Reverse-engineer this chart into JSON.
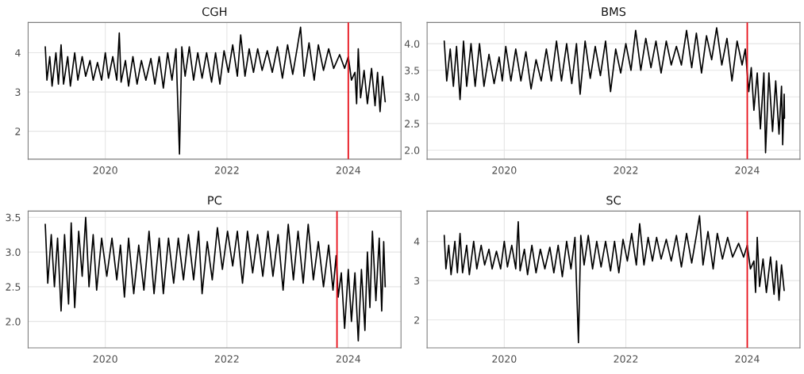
{
  "chart_data": [
    {
      "type": "line",
      "title": "CGH",
      "xlim": [
        "2018-09-24",
        "2024-11-13"
      ],
      "ylim": [
        1.29,
        4.77
      ],
      "yticks": [
        2,
        3,
        4
      ],
      "xticks": [
        {
          "value": "2020-01-01",
          "label": "2020"
        },
        {
          "value": "2022-01-01",
          "label": "2022"
        },
        {
          "value": "2024-01-01",
          "label": "2024"
        }
      ],
      "grid": true,
      "ref_lines": [
        {
          "axis": "x",
          "value": "2024-01-01",
          "color": "#e8101a"
        }
      ],
      "series": [
        {
          "color": "#000000",
          "x": [
            "2019-01-05",
            "2019-01-15",
            "2019-02-01",
            "2019-02-15",
            "2019-03-10",
            "2019-03-25",
            "2019-04-10",
            "2019-04-25",
            "2019-05-20",
            "2019-06-05",
            "2019-07-01",
            "2019-07-20",
            "2019-08-15",
            "2019-09-05",
            "2019-10-01",
            "2019-10-20",
            "2019-11-15",
            "2019-12-10",
            "2020-01-01",
            "2020-01-20",
            "2020-02-15",
            "2020-03-10",
            "2020-03-25",
            "2020-04-05",
            "2020-05-01",
            "2020-05-20",
            "2020-06-15",
            "2020-07-10",
            "2020-08-05",
            "2020-09-01",
            "2020-10-01",
            "2020-10-25",
            "2020-11-20",
            "2020-12-15",
            "2021-01-10",
            "2021-02-05",
            "2021-03-01",
            "2021-03-22",
            "2021-04-05",
            "2021-04-25",
            "2021-05-20",
            "2021-06-15",
            "2021-07-10",
            "2021-08-05",
            "2021-09-01",
            "2021-10-01",
            "2021-10-25",
            "2021-11-20",
            "2021-12-15",
            "2022-01-10",
            "2022-02-05",
            "2022-03-05",
            "2022-03-25",
            "2022-04-20",
            "2022-05-15",
            "2022-06-10",
            "2022-07-05",
            "2022-08-01",
            "2022-09-01",
            "2022-10-01",
            "2022-11-01",
            "2022-12-01",
            "2023-01-01",
            "2023-02-01",
            "2023-03-01",
            "2023-03-20",
            "2023-04-10",
            "2023-05-10",
            "2023-06-10",
            "2023-07-05",
            "2023-08-05",
            "2023-09-05",
            "2023-10-05",
            "2023-11-10",
            "2023-12-10",
            "2024-01-01",
            "2024-01-20",
            "2024-02-10",
            "2024-02-20",
            "2024-03-01",
            "2024-03-15",
            "2024-04-05",
            "2024-04-25",
            "2024-05-20",
            "2024-06-10",
            "2024-06-25",
            "2024-07-10",
            "2024-07-25",
            "2024-08-10"
          ],
          "values": [
            4.15,
            3.3,
            3.9,
            3.15,
            4.0,
            3.2,
            4.2,
            3.2,
            3.9,
            3.15,
            4.0,
            3.3,
            3.9,
            3.4,
            3.8,
            3.3,
            3.75,
            3.3,
            4.0,
            3.35,
            3.9,
            3.3,
            4.5,
            3.25,
            3.8,
            3.15,
            3.9,
            3.2,
            3.8,
            3.3,
            3.85,
            3.2,
            3.9,
            3.1,
            4.0,
            3.3,
            4.1,
            1.42,
            4.15,
            3.4,
            4.15,
            3.3,
            4.0,
            3.35,
            4.0,
            3.25,
            4.0,
            3.2,
            4.05,
            3.5,
            4.2,
            3.4,
            4.45,
            3.4,
            4.1,
            3.5,
            4.1,
            3.55,
            4.05,
            3.5,
            4.15,
            3.35,
            4.2,
            3.45,
            4.15,
            4.65,
            3.4,
            4.25,
            3.3,
            4.2,
            3.55,
            4.1,
            3.6,
            3.95,
            3.6,
            3.9,
            3.3,
            3.5,
            2.7,
            4.1,
            2.85,
            3.55,
            2.7,
            3.6,
            2.65,
            3.5,
            2.5,
            3.4,
            2.75
          ]
        }
      ]
    },
    {
      "type": "line",
      "title": "BMS",
      "xlim": [
        "2018-09-24",
        "2024-11-13"
      ],
      "ylim": [
        1.83,
        4.4
      ],
      "yticks": [
        {
          "value": 2.0,
          "label": "2.0"
        },
        2.5,
        {
          "value": 3.0,
          "label": "3.0"
        },
        3.5,
        {
          "value": 4.0,
          "label": "4.0"
        }
      ],
      "xticks": [
        {
          "value": "2020-01-01",
          "label": "2020"
        },
        {
          "value": "2022-01-01",
          "label": "2022"
        },
        {
          "value": "2024-01-01",
          "label": "2024"
        }
      ],
      "grid": true,
      "ref_lines": [
        {
          "axis": "x",
          "value": "2024-01-01",
          "color": "#e8101a"
        }
      ],
      "series": [
        {
          "color": "#000000",
          "x": [
            "2019-01-05",
            "2019-01-20",
            "2019-02-10",
            "2019-03-01",
            "2019-03-20",
            "2019-04-10",
            "2019-05-01",
            "2019-05-20",
            "2019-06-15",
            "2019-07-10",
            "2019-08-05",
            "2019-09-01",
            "2019-10-01",
            "2019-11-01",
            "2019-12-01",
            "2019-12-20",
            "2020-01-10",
            "2020-02-10",
            "2020-03-10",
            "2020-04-10",
            "2020-05-10",
            "2020-06-10",
            "2020-07-10",
            "2020-08-10",
            "2020-09-10",
            "2020-10-10",
            "2020-11-10",
            "2020-12-10",
            "2021-01-10",
            "2021-02-10",
            "2021-03-10",
            "2021-04-01",
            "2021-05-01",
            "2021-06-01",
            "2021-07-01",
            "2021-08-01",
            "2021-09-01",
            "2021-10-01",
            "2021-11-01",
            "2021-12-01",
            "2022-01-01",
            "2022-02-01",
            "2022-03-01",
            "2022-04-01",
            "2022-05-01",
            "2022-06-01",
            "2022-07-01",
            "2022-08-01",
            "2022-09-01",
            "2022-10-01",
            "2022-11-01",
            "2022-12-01",
            "2023-01-01",
            "2023-02-01",
            "2023-03-01",
            "2023-04-01",
            "2023-05-01",
            "2023-06-01",
            "2023-07-01",
            "2023-08-01",
            "2023-09-01",
            "2023-10-01",
            "2023-11-01",
            "2023-12-01",
            "2023-12-20",
            "2024-01-10",
            "2024-01-25",
            "2024-02-10",
            "2024-03-01",
            "2024-03-20",
            "2024-04-10",
            "2024-04-20",
            "2024-05-10",
            "2024-06-01",
            "2024-06-20",
            "2024-07-10",
            "2024-07-25",
            "2024-08-01",
            "2024-08-10",
            "2024-08-12"
          ],
          "values": [
            4.05,
            3.3,
            3.9,
            3.2,
            3.95,
            2.95,
            4.05,
            3.2,
            4.0,
            3.2,
            4.0,
            3.2,
            3.8,
            3.25,
            3.75,
            3.3,
            3.95,
            3.3,
            3.9,
            3.3,
            3.85,
            3.15,
            3.7,
            3.3,
            3.9,
            3.3,
            4.05,
            3.3,
            4.0,
            3.25,
            4.0,
            3.05,
            4.05,
            3.35,
            3.95,
            3.4,
            4.05,
            3.1,
            3.9,
            3.45,
            4.0,
            3.5,
            4.25,
            3.5,
            4.1,
            3.55,
            4.05,
            3.45,
            4.05,
            3.6,
            3.95,
            3.6,
            4.25,
            3.55,
            4.2,
            3.45,
            4.15,
            3.7,
            4.3,
            3.6,
            4.1,
            3.3,
            4.05,
            3.6,
            3.9,
            3.1,
            3.55,
            2.75,
            3.45,
            2.4,
            3.45,
            1.95,
            3.45,
            2.35,
            3.3,
            2.3,
            3.2,
            2.1,
            3.05,
            2.6
          ]
        }
      ]
    },
    {
      "type": "line",
      "title": "PC",
      "xlim": [
        "2018-09-24",
        "2024-11-13"
      ],
      "ylim": [
        1.62,
        3.59
      ],
      "yticks": [
        {
          "value": 2.0,
          "label": "2.0"
        },
        2.5,
        {
          "value": 3.0,
          "label": "3.0"
        },
        3.5
      ],
      "xticks": [
        {
          "value": "2020-01-01",
          "label": "2020"
        },
        {
          "value": "2022-01-01",
          "label": "2022"
        },
        {
          "value": "2024-01-01",
          "label": "2024"
        }
      ],
      "grid": true,
      "ref_lines": [
        {
          "axis": "x",
          "value": "2023-10-25",
          "color": "#e8101a"
        }
      ],
      "series": [
        {
          "color": "#000000",
          "x": [
            "2019-01-05",
            "2019-01-20",
            "2019-02-10",
            "2019-03-01",
            "2019-03-20",
            "2019-04-10",
            "2019-05-01",
            "2019-05-25",
            "2019-06-10",
            "2019-07-01",
            "2019-07-25",
            "2019-08-15",
            "2019-09-05",
            "2019-09-25",
            "2019-10-20",
            "2019-11-10",
            "2019-12-10",
            "2020-01-10",
            "2020-02-10",
            "2020-03-10",
            "2020-04-01",
            "2020-04-25",
            "2020-05-20",
            "2020-06-20",
            "2020-07-20",
            "2020-08-20",
            "2020-09-20",
            "2020-10-20",
            "2020-11-20",
            "2020-12-15",
            "2021-01-15",
            "2021-02-15",
            "2021-03-15",
            "2021-04-15",
            "2021-05-15",
            "2021-06-15",
            "2021-07-15",
            "2021-08-05",
            "2021-09-05",
            "2021-10-05",
            "2021-11-05",
            "2021-12-05",
            "2022-01-05",
            "2022-02-05",
            "2022-03-05",
            "2022-04-05",
            "2022-05-05",
            "2022-06-05",
            "2022-07-05",
            "2022-08-05",
            "2022-09-05",
            "2022-10-05",
            "2022-11-05",
            "2022-12-05",
            "2023-01-05",
            "2023-02-05",
            "2023-03-05",
            "2023-04-05",
            "2023-05-05",
            "2023-06-05",
            "2023-07-05",
            "2023-08-05",
            "2023-09-05",
            "2023-10-01",
            "2023-10-20",
            "2023-11-01",
            "2023-11-20",
            "2023-12-10",
            "2024-01-01",
            "2024-01-20",
            "2024-02-10",
            "2024-03-01",
            "2024-03-20",
            "2024-04-10",
            "2024-04-25",
            "2024-05-10",
            "2024-05-25",
            "2024-06-15",
            "2024-07-05",
            "2024-07-20",
            "2024-08-01",
            "2024-08-10"
          ],
          "values": [
            3.4,
            2.55,
            3.25,
            2.5,
            3.2,
            2.15,
            3.25,
            2.25,
            3.42,
            2.2,
            3.3,
            2.65,
            3.5,
            2.5,
            3.25,
            2.45,
            3.2,
            2.65,
            3.2,
            2.6,
            3.1,
            2.35,
            3.2,
            2.4,
            3.1,
            2.45,
            3.3,
            2.4,
            3.2,
            2.4,
            3.2,
            2.55,
            3.2,
            2.6,
            3.25,
            2.6,
            3.3,
            2.4,
            3.15,
            2.6,
            3.35,
            2.75,
            3.3,
            2.8,
            3.3,
            2.55,
            3.3,
            2.7,
            3.25,
            2.65,
            3.3,
            2.65,
            3.25,
            2.45,
            3.4,
            2.6,
            3.3,
            2.55,
            3.4,
            2.6,
            3.15,
            2.5,
            3.1,
            2.45,
            2.95,
            2.35,
            2.7,
            1.9,
            2.75,
            2.0,
            2.7,
            1.72,
            2.75,
            1.87,
            3.0,
            2.2,
            3.3,
            2.3,
            3.2,
            2.15,
            3.15,
            2.5
          ]
        }
      ]
    },
    {
      "type": "line",
      "title": "SC",
      "xlim": [
        "2018-09-24",
        "2024-11-13"
      ],
      "ylim": [
        1.29,
        4.77
      ],
      "yticks": [
        2,
        3,
        4
      ],
      "xticks": [
        {
          "value": "2020-01-01",
          "label": "2020"
        },
        {
          "value": "2022-01-01",
          "label": "2022"
        },
        {
          "value": "2024-01-01",
          "label": "2024"
        }
      ],
      "grid": true,
      "ref_lines": [
        {
          "axis": "x",
          "value": "2024-01-01",
          "color": "#e8101a"
        }
      ],
      "series": [
        {
          "color": "#000000",
          "x": [
            "2019-01-05",
            "2019-01-15",
            "2019-02-01",
            "2019-02-15",
            "2019-03-10",
            "2019-03-25",
            "2019-04-10",
            "2019-04-25",
            "2019-05-20",
            "2019-06-05",
            "2019-07-01",
            "2019-07-20",
            "2019-08-15",
            "2019-09-05",
            "2019-10-01",
            "2019-10-20",
            "2019-11-15",
            "2019-12-10",
            "2020-01-01",
            "2020-01-20",
            "2020-02-15",
            "2020-03-10",
            "2020-03-25",
            "2020-04-05",
            "2020-05-01",
            "2020-05-20",
            "2020-06-15",
            "2020-07-10",
            "2020-08-05",
            "2020-09-01",
            "2020-10-01",
            "2020-10-25",
            "2020-11-20",
            "2020-12-15",
            "2021-01-10",
            "2021-02-05",
            "2021-03-01",
            "2021-03-22",
            "2021-04-05",
            "2021-04-25",
            "2021-05-20",
            "2021-06-15",
            "2021-07-10",
            "2021-08-05",
            "2021-09-01",
            "2021-10-01",
            "2021-10-25",
            "2021-11-20",
            "2021-12-15",
            "2022-01-10",
            "2022-02-05",
            "2022-03-05",
            "2022-03-25",
            "2022-04-20",
            "2022-05-15",
            "2022-06-10",
            "2022-07-05",
            "2022-08-01",
            "2022-09-01",
            "2022-10-01",
            "2022-11-01",
            "2022-12-01",
            "2023-01-01",
            "2023-02-01",
            "2023-03-01",
            "2023-03-20",
            "2023-04-10",
            "2023-05-10",
            "2023-06-10",
            "2023-07-05",
            "2023-08-05",
            "2023-09-05",
            "2023-10-05",
            "2023-11-10",
            "2023-12-10",
            "2024-01-01",
            "2024-01-20",
            "2024-02-10",
            "2024-02-20",
            "2024-03-01",
            "2024-03-15",
            "2024-04-05",
            "2024-04-25",
            "2024-05-20",
            "2024-06-10",
            "2024-06-25",
            "2024-07-10",
            "2024-07-25",
            "2024-08-10"
          ],
          "values": [
            4.15,
            3.3,
            3.9,
            3.15,
            4.0,
            3.2,
            4.2,
            3.2,
            3.9,
            3.15,
            4.0,
            3.3,
            3.9,
            3.4,
            3.8,
            3.3,
            3.75,
            3.3,
            4.0,
            3.35,
            3.9,
            3.3,
            4.5,
            3.25,
            3.8,
            3.15,
            3.9,
            3.2,
            3.8,
            3.3,
            3.85,
            3.2,
            3.9,
            3.1,
            4.0,
            3.3,
            4.1,
            1.42,
            4.15,
            3.4,
            4.15,
            3.3,
            4.0,
            3.35,
            4.0,
            3.25,
            4.0,
            3.2,
            4.05,
            3.5,
            4.2,
            3.4,
            4.45,
            3.4,
            4.1,
            3.5,
            4.1,
            3.55,
            4.05,
            3.5,
            4.15,
            3.35,
            4.2,
            3.45,
            4.15,
            4.65,
            3.4,
            4.25,
            3.3,
            4.2,
            3.55,
            4.1,
            3.6,
            3.95,
            3.6,
            3.9,
            3.3,
            3.5,
            2.7,
            4.1,
            2.85,
            3.55,
            2.7,
            3.6,
            2.65,
            3.5,
            2.5,
            3.4,
            2.75
          ]
        }
      ]
    }
  ]
}
